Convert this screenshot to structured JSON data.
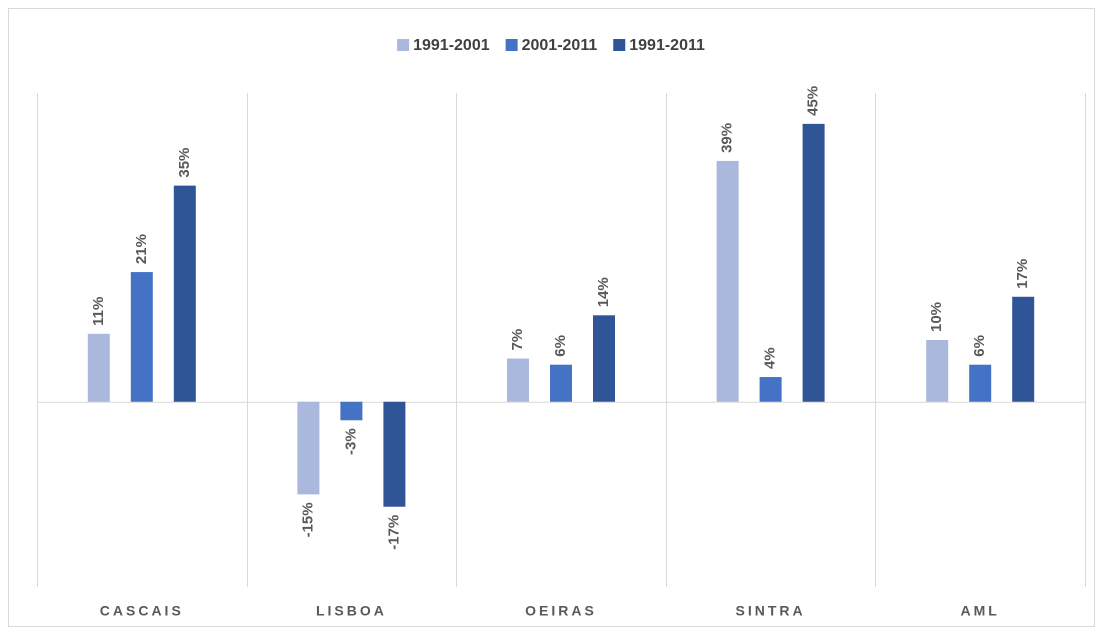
{
  "chart_data": {
    "type": "bar",
    "categories": [
      "CASCAIS",
      "LISBOA",
      "OEIRAS",
      "SINTRA",
      "AML"
    ],
    "series": [
      {
        "name": "1991-2001",
        "color": "#a9b8dc",
        "values": [
          11,
          -15,
          7,
          39,
          10
        ],
        "value_labels": [
          "11%",
          "-15%",
          "7%",
          "39%",
          "10%"
        ]
      },
      {
        "name": "2001-2011",
        "color": "#4472c4",
        "values": [
          21,
          -3,
          6,
          4,
          6
        ],
        "value_labels": [
          "21%",
          "-3%",
          "6%",
          "4%",
          "6%"
        ]
      },
      {
        "name": "1991-2011",
        "color": "#2f5597",
        "values": [
          35,
          -17,
          14,
          45,
          17
        ],
        "value_labels": [
          "35%",
          "-17%",
          "14%",
          "45%",
          "17%"
        ]
      }
    ],
    "ylim": [
      -30,
      50
    ],
    "legend": "top"
  }
}
